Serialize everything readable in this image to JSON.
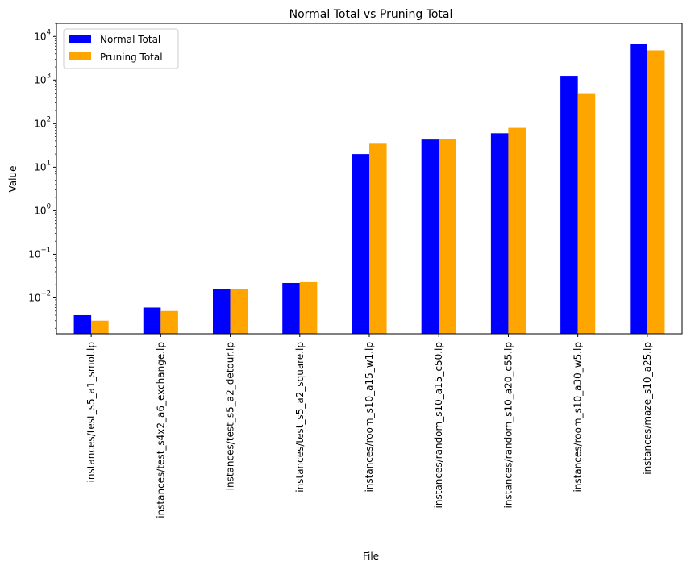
{
  "chart_data": {
    "type": "bar",
    "title": "Normal Total vs Pruning Total",
    "xlabel": "File",
    "ylabel": "Value",
    "yscale": "log",
    "ylim": [
      0.0015,
      20000
    ],
    "yticks": [
      {
        "value": 0.01,
        "base": "10",
        "exp": "−2"
      },
      {
        "value": 0.1,
        "base": "10",
        "exp": "−1"
      },
      {
        "value": 1,
        "base": "10",
        "exp": "0"
      },
      {
        "value": 10,
        "base": "10",
        "exp": "1"
      },
      {
        "value": 100,
        "base": "10",
        "exp": "2"
      },
      {
        "value": 1000,
        "base": "10",
        "exp": "3"
      },
      {
        "value": 10000,
        "base": "10",
        "exp": "4"
      }
    ],
    "grid": false,
    "legend_position": "top-left",
    "categories": [
      "instances/test_s5_a1_smol.lp",
      "instances/test_s4x2_a6_exchange.lp",
      "instances/test_s5_a2_detour.lp",
      "instances/test_s5_a2_square.lp",
      "instances/room_s10_a15_w1.lp",
      "instances/random_s10_a15_c50.lp",
      "instances/random_s10_a20_c55.lp",
      "instances/room_s10_a30_w5.lp",
      "instances/maze_s10_a25.lp"
    ],
    "series": [
      {
        "name": "Normal Total",
        "color": "#0000ff",
        "values": [
          0.004,
          0.006,
          0.016,
          0.022,
          20,
          43,
          60,
          1250,
          6800
        ]
      },
      {
        "name": "Pruning Total",
        "color": "#ffa500",
        "values": [
          0.003,
          0.005,
          0.016,
          0.023,
          36,
          45,
          80,
          500,
          4800
        ]
      }
    ]
  }
}
